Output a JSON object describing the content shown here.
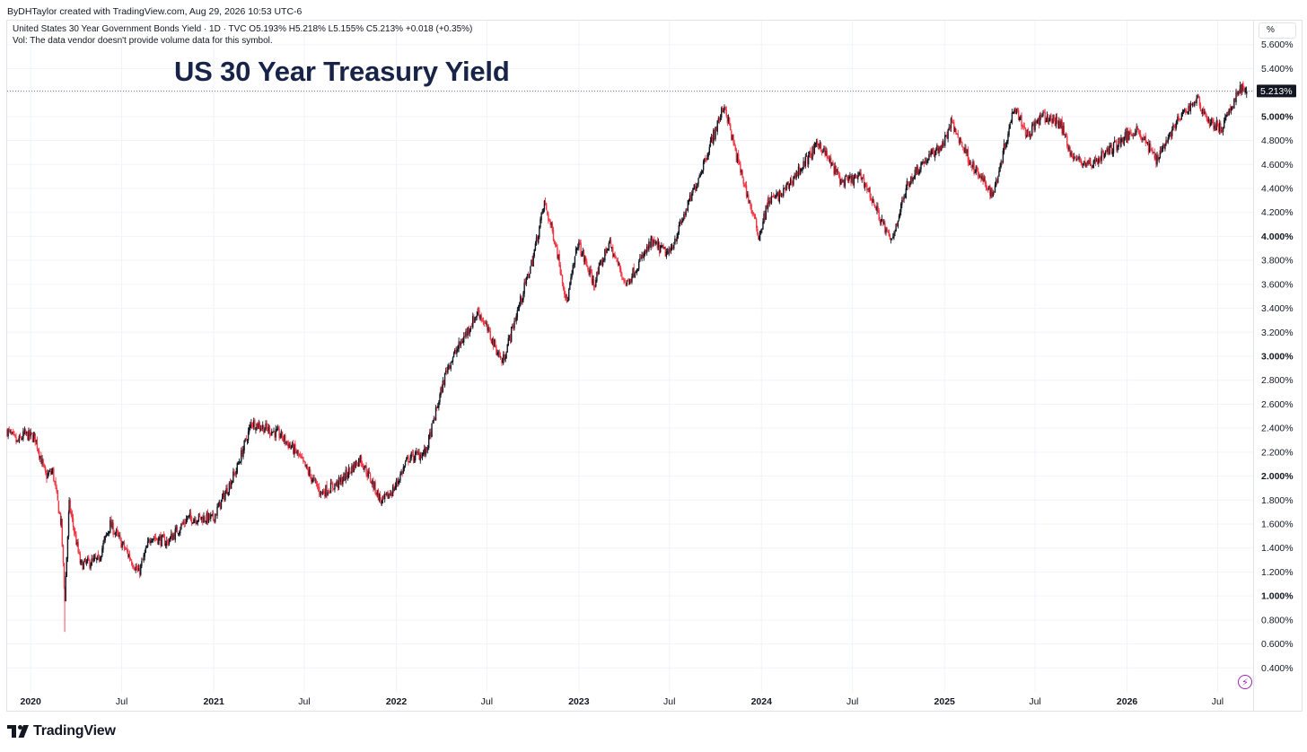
{
  "header": {
    "credit": "ByDHTaylor created with TradingView.com, Aug 29, 2026 10:53 UTC-6"
  },
  "legend": {
    "line1": "United States 30 Year Government Bonds Yield · 1D · TVC  O5.193%  H5.218%  L5.155%  C5.213%  +0.018 (+0.35%)",
    "line2": "Vol: The data vendor doesn't provide volume data for this symbol."
  },
  "scale_button": "%",
  "brand": {
    "name": "TradingView",
    "icon": "tradingview-logo-icon"
  },
  "tools": {
    "bolt_icon": "lightning-bolt-icon"
  },
  "colors": {
    "up": "#131722",
    "down": "#f23645",
    "title": "#172447",
    "grid": "#f0f3fa",
    "price_label_bg": "#131722",
    "accent": "#9c27b0"
  },
  "chart_data": {
    "type": "candlestick",
    "title": "US 30 Year Treasury Yield",
    "symbol": "United States 30 Year Government Bonds Yield",
    "interval": "1D",
    "source": "TVC",
    "last": {
      "open": 5.193,
      "high": 5.218,
      "low": 5.155,
      "close": 5.213,
      "change": 0.018,
      "change_pct": 0.35,
      "label": "5.213%"
    },
    "ylim": [
      0.2,
      5.8
    ],
    "yticks": [
      {
        "v": 0.4,
        "label": "0.400%"
      },
      {
        "v": 0.6,
        "label": "0.600%"
      },
      {
        "v": 0.8,
        "label": "0.800%"
      },
      {
        "v": 1.0,
        "label": "1.000%",
        "bold": true
      },
      {
        "v": 1.2,
        "label": "1.200%"
      },
      {
        "v": 1.4,
        "label": "1.400%"
      },
      {
        "v": 1.6,
        "label": "1.600%"
      },
      {
        "v": 1.8,
        "label": "1.800%"
      },
      {
        "v": 2.0,
        "label": "2.000%",
        "bold": true
      },
      {
        "v": 2.2,
        "label": "2.200%"
      },
      {
        "v": 2.4,
        "label": "2.400%"
      },
      {
        "v": 2.6,
        "label": "2.600%"
      },
      {
        "v": 2.8,
        "label": "2.800%"
      },
      {
        "v": 3.0,
        "label": "3.000%",
        "bold": true
      },
      {
        "v": 3.2,
        "label": "3.200%"
      },
      {
        "v": 3.4,
        "label": "3.400%"
      },
      {
        "v": 3.6,
        "label": "3.600%"
      },
      {
        "v": 3.8,
        "label": "3.800%"
      },
      {
        "v": 4.0,
        "label": "4.000%",
        "bold": true
      },
      {
        "v": 4.2,
        "label": "4.200%"
      },
      {
        "v": 4.4,
        "label": "4.400%"
      },
      {
        "v": 4.6,
        "label": "4.600%"
      },
      {
        "v": 4.8,
        "label": "4.800%"
      },
      {
        "v": 5.0,
        "label": "5.000%",
        "bold": true
      },
      {
        "v": 5.2,
        "label": "5.200%"
      },
      {
        "v": 5.4,
        "label": "5.400%"
      },
      {
        "v": 5.6,
        "label": "5.600%"
      }
    ],
    "xlim": [
      "2019-11-15",
      "2026-09-10"
    ],
    "xticks": [
      {
        "date": "2020-01-01",
        "label": "2020",
        "bold": true
      },
      {
        "date": "2020-07-01",
        "label": "Jul"
      },
      {
        "date": "2021-01-01",
        "label": "2021",
        "bold": true
      },
      {
        "date": "2021-07-01",
        "label": "Jul"
      },
      {
        "date": "2022-01-01",
        "label": "2022",
        "bold": true
      },
      {
        "date": "2022-07-01",
        "label": "Jul"
      },
      {
        "date": "2023-01-01",
        "label": "2023",
        "bold": true
      },
      {
        "date": "2023-07-01",
        "label": "Jul"
      },
      {
        "date": "2024-01-01",
        "label": "2024",
        "bold": true
      },
      {
        "date": "2024-07-01",
        "label": "Jul"
      },
      {
        "date": "2025-01-01",
        "label": "2025",
        "bold": true
      },
      {
        "date": "2025-07-01",
        "label": "Jul"
      },
      {
        "date": "2026-01-01",
        "label": "2026",
        "bold": true
      },
      {
        "date": "2026-07-01",
        "label": "Jul"
      }
    ],
    "path": [
      [
        "2019-11-15",
        2.38
      ],
      [
        "2019-12-05",
        2.28
      ],
      [
        "2019-12-20",
        2.35
      ],
      [
        "2020-01-10",
        2.32
      ],
      [
        "2020-01-31",
        2.0
      ],
      [
        "2020-02-14",
        2.04
      ],
      [
        "2020-03-02",
        1.6
      ],
      [
        "2020-03-09",
        0.99
      ],
      [
        "2020-03-18",
        1.76
      ],
      [
        "2020-04-10",
        1.26
      ],
      [
        "2020-05-15",
        1.3
      ],
      [
        "2020-06-08",
        1.6
      ],
      [
        "2020-07-15",
        1.34
      ],
      [
        "2020-08-04",
        1.19
      ],
      [
        "2020-08-28",
        1.5
      ],
      [
        "2020-09-30",
        1.45
      ],
      [
        "2020-11-10",
        1.65
      ],
      [
        "2020-12-31",
        1.65
      ],
      [
        "2021-02-15",
        2.05
      ],
      [
        "2021-03-18",
        2.45
      ],
      [
        "2021-05-12",
        2.35
      ],
      [
        "2021-06-15",
        2.2
      ],
      [
        "2021-08-03",
        1.86
      ],
      [
        "2021-09-10",
        1.95
      ],
      [
        "2021-10-21",
        2.15
      ],
      [
        "2021-12-03",
        1.78
      ],
      [
        "2021-12-28",
        1.9
      ],
      [
        "2022-01-25",
        2.15
      ],
      [
        "2022-03-01",
        2.2
      ],
      [
        "2022-04-12",
        2.9
      ],
      [
        "2022-06-14",
        3.38
      ],
      [
        "2022-07-29",
        2.98
      ],
      [
        "2022-08-01",
        2.95
      ],
      [
        "2022-09-30",
        3.8
      ],
      [
        "2022-10-24",
        4.28
      ],
      [
        "2022-11-15",
        3.95
      ],
      [
        "2022-12-08",
        3.45
      ],
      [
        "2022-12-30",
        3.95
      ],
      [
        "2023-01-31",
        3.6
      ],
      [
        "2023-03-02",
        3.95
      ],
      [
        "2023-04-05",
        3.6
      ],
      [
        "2023-05-26",
        3.95
      ],
      [
        "2023-06-30",
        3.85
      ],
      [
        "2023-08-20",
        4.4
      ],
      [
        "2023-10-19",
        5.1
      ],
      [
        "2023-11-10",
        4.7
      ],
      [
        "2023-12-27",
        4.0
      ],
      [
        "2024-01-15",
        4.3
      ],
      [
        "2024-02-10",
        4.35
      ],
      [
        "2024-04-25",
        4.78
      ],
      [
        "2024-06-10",
        4.45
      ],
      [
        "2024-07-20",
        4.5
      ],
      [
        "2024-09-16",
        3.95
      ],
      [
        "2024-10-20",
        4.45
      ],
      [
        "2024-11-15",
        4.6
      ],
      [
        "2024-12-31",
        4.78
      ],
      [
        "2025-01-14",
        4.95
      ],
      [
        "2025-03-03",
        4.55
      ],
      [
        "2025-04-08",
        4.35
      ],
      [
        "2025-05-21",
        5.1
      ],
      [
        "2025-06-15",
        4.85
      ],
      [
        "2025-07-15",
        5.0
      ],
      [
        "2025-08-20",
        4.95
      ],
      [
        "2025-09-15",
        4.65
      ],
      [
        "2025-10-20",
        4.6
      ],
      [
        "2025-12-20",
        4.8
      ],
      [
        "2026-01-20",
        4.9
      ],
      [
        "2026-02-28",
        4.65
      ],
      [
        "2026-04-10",
        4.95
      ],
      [
        "2026-05-20",
        5.15
      ],
      [
        "2026-06-15",
        4.95
      ],
      [
        "2026-07-10",
        4.9
      ],
      [
        "2026-08-15",
        5.25
      ],
      [
        "2026-08-28",
        5.213
      ]
    ],
    "grid": true,
    "price_line": {
      "value": 5.213,
      "style": "dotted"
    }
  }
}
